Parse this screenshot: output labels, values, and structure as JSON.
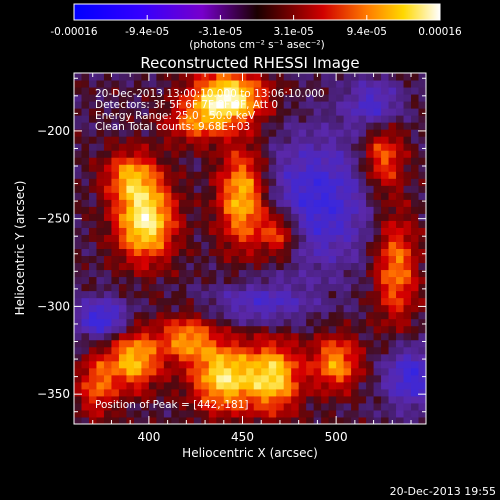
{
  "chart_data": {
    "type": "heatmap",
    "title": "Reconstructed RHESSI Image",
    "xlabel": "Heliocentric X (arcsec)",
    "ylabel": "Heliocentric Y (arcsec)",
    "xlim": [
      360,
      548
    ],
    "ylim": [
      -367,
      -167
    ],
    "x_ticks": [
      400,
      450,
      500
    ],
    "y_ticks": [
      -200,
      -250,
      -300,
      -350
    ],
    "colorbar": {
      "ticks": [
        "-0.00016",
        "-9.4e-05",
        "-3.1e-05",
        "3.1e-05",
        "9.4e-05",
        "0.00016"
      ],
      "unit_label": "(photons cm⁻² s⁻¹ asec⁻²)",
      "range": [
        -0.00016,
        0.00016
      ]
    },
    "annotations": [
      "20-Dec-2013 13:00:10.000 to 13:06:10.000",
      "Detectors: 3F 5F 6F 7F 8F 9F, Att 0",
      "Energy Range: 25.0 - 50.0 keV",
      "Clean     Total counts: 9.68E+03"
    ],
    "peak_label": "Position of Peak = [442,-181]",
    "sources": [
      {
        "x": 442,
        "y": -181,
        "amp": 1.0,
        "sx": 14,
        "sy": 10
      },
      {
        "x": 425,
        "y": -196,
        "amp": 0.45,
        "sx": 12,
        "sy": 8
      },
      {
        "x": 398,
        "y": -251,
        "amp": 0.95,
        "sx": 11,
        "sy": 16
      },
      {
        "x": 390,
        "y": -225,
        "amp": 0.55,
        "sx": 10,
        "sy": 10
      },
      {
        "x": 450,
        "y": -238,
        "amp": 0.8,
        "sx": 9,
        "sy": 20
      },
      {
        "x": 470,
        "y": -258,
        "amp": 0.6,
        "sx": 8,
        "sy": 10
      },
      {
        "x": 525,
        "y": -215,
        "amp": 0.55,
        "sx": 8,
        "sy": 14
      },
      {
        "x": 532,
        "y": -278,
        "amp": 0.6,
        "sx": 8,
        "sy": 22
      },
      {
        "x": 420,
        "y": -318,
        "amp": 0.6,
        "sx": 10,
        "sy": 9
      },
      {
        "x": 392,
        "y": -330,
        "amp": 0.75,
        "sx": 10,
        "sy": 12
      },
      {
        "x": 440,
        "y": -340,
        "amp": 0.85,
        "sx": 12,
        "sy": 14
      },
      {
        "x": 467,
        "y": -340,
        "amp": 0.8,
        "sx": 10,
        "sy": 14
      },
      {
        "x": 500,
        "y": -332,
        "amp": 0.65,
        "sx": 9,
        "sy": 11
      },
      {
        "x": 372,
        "y": -345,
        "amp": 0.5,
        "sx": 7,
        "sy": 12
      }
    ],
    "negative_regions": [
      {
        "x": 490,
        "y": -240,
        "amp": 0.55,
        "sx": 20,
        "sy": 26
      },
      {
        "x": 375,
        "y": -307,
        "amp": 0.6,
        "sx": 10,
        "sy": 8
      },
      {
        "x": 540,
        "y": -340,
        "amp": 0.55,
        "sx": 10,
        "sy": 12
      },
      {
        "x": 520,
        "y": -185,
        "amp": 0.45,
        "sx": 10,
        "sy": 10
      },
      {
        "x": 460,
        "y": -298,
        "amp": 0.4,
        "sx": 18,
        "sy": 8
      }
    ]
  },
  "footer": {
    "timestamp": "20-Dec-2013 19:55"
  }
}
